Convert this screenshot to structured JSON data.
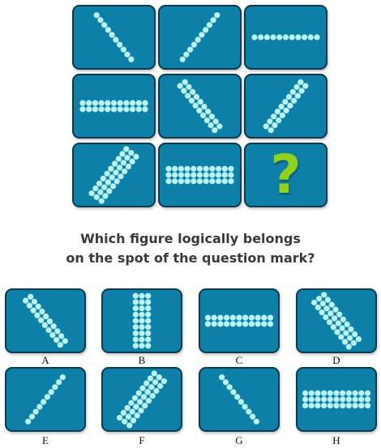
{
  "question": {
    "line1": "Which figure logically belongs",
    "line2": "on the spot of the question mark?"
  },
  "grid_mark": "?",
  "colors": {
    "tile": "#0e7fa6",
    "tile_border": "#0a3a4e",
    "dot": "#b9f3fb",
    "question_mark": "#8fd11e"
  },
  "puzzle_cells": [
    {
      "id": "r1c1",
      "angle": "diag-down",
      "rows": 1
    },
    {
      "id": "r1c2",
      "angle": "diag-up",
      "rows": 1
    },
    {
      "id": "r1c3",
      "angle": "horizontal",
      "rows": 1
    },
    {
      "id": "r2c1",
      "angle": "horizontal",
      "rows": 2
    },
    {
      "id": "r2c2",
      "angle": "diag-down",
      "rows": 2
    },
    {
      "id": "r2c3",
      "angle": "diag-up",
      "rows": 2
    },
    {
      "id": "r3c1",
      "angle": "diag-up",
      "rows": 3
    },
    {
      "id": "r3c2",
      "angle": "horizontal",
      "rows": 3
    },
    {
      "id": "r3c3",
      "angle": "question-mark",
      "rows": 0
    }
  ],
  "options": [
    {
      "letter": "A",
      "angle": "diag-down",
      "rows": 2
    },
    {
      "letter": "B",
      "angle": "vertical",
      "rows": 3
    },
    {
      "letter": "C",
      "angle": "horizontal",
      "rows": 2
    },
    {
      "letter": "D",
      "angle": "diag-down",
      "rows": 3
    },
    {
      "letter": "E",
      "angle": "diag-up",
      "rows": 1
    },
    {
      "letter": "F",
      "angle": "diag-up",
      "rows": 3
    },
    {
      "letter": "G",
      "angle": "diag-down",
      "rows": 1
    },
    {
      "letter": "H",
      "angle": "horizontal",
      "rows": 3
    }
  ]
}
